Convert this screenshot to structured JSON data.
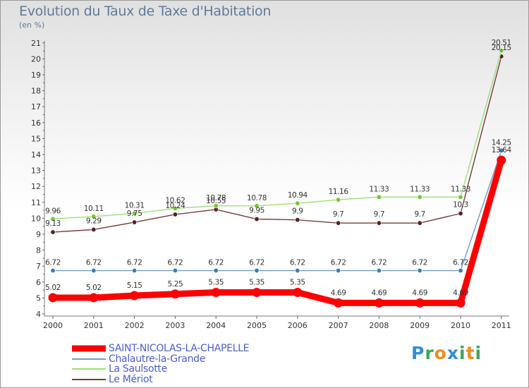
{
  "header": {
    "title": "Evolution du Taux de Taxe d'Habitation",
    "subtitle": "(en %)"
  },
  "logo": {
    "text": "Proxiti"
  },
  "chart_data": {
    "type": "line",
    "x": [
      "2000",
      "2001",
      "2002",
      "2003",
      "2004",
      "2005",
      "2006",
      "2007",
      "2008",
      "2009",
      "2010",
      "2011"
    ],
    "ylim": [
      4,
      21
    ],
    "yticks": [
      4,
      5,
      6,
      7,
      8,
      9,
      10,
      11,
      12,
      13,
      14,
      15,
      16,
      17,
      18,
      19,
      20,
      21
    ],
    "grid": false,
    "legend_position": "bottom-left",
    "series": [
      {
        "name": "SAINT-NICOLAS-LA-CHAPELLE",
        "color": "#ff0000",
        "values": [
          5.02,
          5.02,
          5.15,
          5.25,
          5.35,
          5.35,
          5.35,
          4.69,
          4.69,
          4.69,
          4.69,
          13.64
        ],
        "labels": [
          "5.02",
          "5.02",
          "5.15",
          "5.25",
          "5.35",
          "5.35",
          "5.35",
          "4.69",
          "4.69",
          "4.69",
          "4.69",
          "13.64"
        ]
      },
      {
        "name": "Chalautre-la-Grande",
        "color": "#6f9fc6",
        "marker": "#2f7fc0",
        "values": [
          6.72,
          6.72,
          6.72,
          6.72,
          6.72,
          6.72,
          6.72,
          6.72,
          6.72,
          6.72,
          6.72,
          14.25
        ],
        "labels": [
          "6.72",
          "6.72",
          "6.72",
          "6.72",
          "6.72",
          "6.72",
          "6.72",
          "6.72",
          "6.72",
          "6.72",
          "6.72",
          "14.25"
        ]
      },
      {
        "name": "La Saulsotte",
        "color": "#9ee07a",
        "marker": "#6cc930",
        "values": [
          9.96,
          10.11,
          10.31,
          10.62,
          10.78,
          10.78,
          10.94,
          11.16,
          11.33,
          11.33,
          11.33,
          20.51
        ],
        "labels": [
          "9.96",
          "10.11",
          "10.31",
          "10.62",
          "10.78",
          "10.78",
          "10.94",
          "11.16",
          "11.33",
          "11.33",
          "11.33",
          "20.51"
        ]
      },
      {
        "name": "Le Mériot",
        "color": "#7a3a3a",
        "marker": "#5a1e1e",
        "values": [
          9.13,
          9.29,
          9.75,
          10.24,
          10.55,
          9.95,
          9.9,
          9.7,
          9.7,
          9.7,
          10.3,
          20.15
        ],
        "labels": [
          "9.13",
          "9.29",
          "9.75",
          "10.24",
          "10.55",
          "9.95",
          "9.9",
          "9.7",
          "9.7",
          "9.7",
          "10.3",
          "20.15"
        ]
      }
    ]
  }
}
